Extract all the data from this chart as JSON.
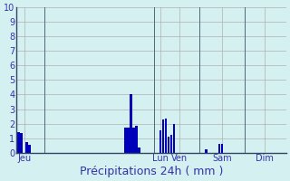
{
  "xlabel": "Précipitations 24h ( mm )",
  "background_color": "#d5f0f0",
  "bar_color_dark": "#0000bb",
  "bar_color_mid": "#0033cc",
  "ylim": [
    0,
    10
  ],
  "yticks": [
    0,
    1,
    2,
    3,
    4,
    5,
    6,
    7,
    8,
    9,
    10
  ],
  "day_labels": [
    "Jeu",
    "Lun",
    "Ven",
    "Sam",
    "Dim"
  ],
  "day_tick_positions": [
    2,
    53,
    60,
    76,
    92
  ],
  "total_bars": 100,
  "bar_values": [
    1.4,
    1.35,
    0.0,
    0.7,
    0.55,
    0.0,
    0.0,
    0.0,
    0.0,
    0.0,
    0.0,
    0.0,
    0.0,
    0.0,
    0.0,
    0.0,
    0.0,
    0.0,
    0.0,
    0.0,
    0.0,
    0.0,
    0.0,
    0.0,
    0.0,
    0.0,
    0.0,
    0.0,
    0.0,
    0.0,
    0.0,
    0.0,
    0.0,
    0.0,
    0.0,
    0.0,
    0.0,
    0.0,
    0.0,
    0.0,
    1.75,
    1.75,
    4.0,
    1.7,
    1.85,
    0.35,
    0.0,
    0.0,
    0.0,
    0.0,
    0.0,
    0.0,
    0.0,
    1.55,
    2.3,
    2.35,
    1.1,
    1.25,
    2.0,
    0.0,
    0.0,
    0.0,
    0.0,
    0.0,
    0.0,
    0.0,
    0.0,
    0.0,
    0.0,
    0.0,
    0.25,
    0.0,
    0.0,
    0.0,
    0.0,
    0.6,
    0.6,
    0.0,
    0.0,
    0.0,
    0.0,
    0.0,
    0.0,
    0.0,
    0.0,
    0.0,
    0.0,
    0.0,
    0.0,
    0.0,
    0.0,
    0.0,
    0.0,
    0.0,
    0.0,
    0.0,
    0.0,
    0.0,
    0.0,
    0.0
  ],
  "vline_positions": [
    9.5,
    50.5,
    67.5,
    84.5
  ],
  "grid_color": "#b0b0b0",
  "text_color": "#3333aa",
  "xlabel_fontsize": 9,
  "tick_fontsize": 7
}
